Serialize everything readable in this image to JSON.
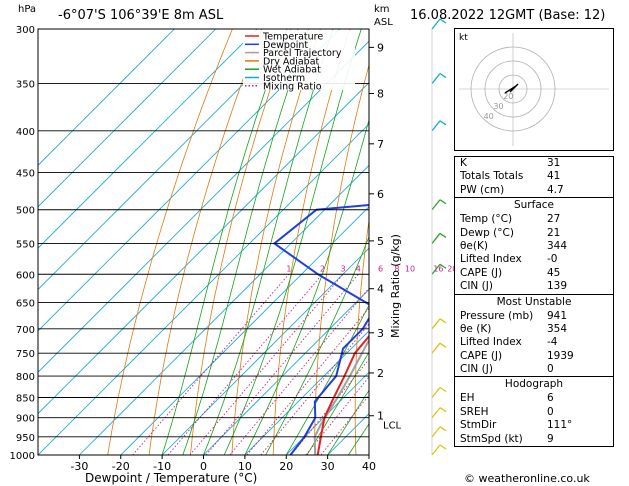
{
  "header": {
    "location": "-6°07'S  106°39'E  8m  ASL",
    "datetime": "16.08.2022  12GMT  (Base: 12)",
    "pressure_unit": "hPa",
    "height_unit": "km",
    "height_unit2": "ASL",
    "copyright": "© weatheronline.co.uk"
  },
  "chart_data": {
    "type": "skew-t",
    "xlabel": "Dewpoint / Temperature (°C)",
    "ylabel_right": "Mixing Ratio (g/kg)",
    "y_ticks_hpa": [
      300,
      350,
      400,
      450,
      500,
      550,
      600,
      650,
      700,
      750,
      800,
      850,
      900,
      950,
      1000
    ],
    "x_ticks_c": [
      -30,
      -20,
      -10,
      0,
      10,
      20,
      30,
      40
    ],
    "xlim_c": [
      -40,
      40
    ],
    "ylim_hpa": [
      1000,
      300
    ],
    "height_ticks": [
      {
        "label": "9",
        "p": 316
      },
      {
        "label": "8",
        "p": 360
      },
      {
        "label": "7",
        "p": 415
      },
      {
        "label": "6",
        "p": 478
      },
      {
        "label": "5",
        "p": 546
      },
      {
        "label": "4",
        "p": 625
      },
      {
        "label": "3",
        "p": 708
      },
      {
        "label": "2",
        "p": 793
      },
      {
        "label": "1",
        "p": 895
      }
    ],
    "lcl_label": "LCL",
    "lcl_p": 918,
    "mixing_ratio_labels": [
      "1",
      "2",
      "3",
      "4",
      "6",
      "8",
      "10",
      "16",
      "20",
      "25"
    ],
    "mixing_ratio_values": [
      1,
      2,
      3,
      4,
      6,
      8,
      10,
      16,
      20,
      25
    ],
    "legend": [
      {
        "name": "Temperature",
        "color": "#e8201e",
        "style": "solid"
      },
      {
        "name": "Dewpoint",
        "color": "#1f3fe0",
        "style": "solid"
      },
      {
        "name": "Parcel Trajectory",
        "color": "#a0a0a0",
        "style": "solid"
      },
      {
        "name": "Dry Adiabat",
        "color": "#e07a10",
        "style": "solid"
      },
      {
        "name": "Wet Adiabat",
        "color": "#16a516",
        "style": "solid"
      },
      {
        "name": "Isotherm",
        "color": "#10a8d8",
        "style": "solid"
      },
      {
        "name": "Mixing Ratio",
        "color": "#d0208c",
        "style": "dotted"
      }
    ],
    "temperature": [
      {
        "p": 1000,
        "t": 27.6
      },
      {
        "p": 950,
        "t": 24.0
      },
      {
        "p": 900,
        "t": 20.2
      },
      {
        "p": 850,
        "t": 17.6
      },
      {
        "p": 800,
        "t": 15.0
      },
      {
        "p": 750,
        "t": 12.0
      },
      {
        "p": 700,
        "t": 11.0
      },
      {
        "p": 650,
        "t": 6.0
      },
      {
        "p": 600,
        "t": 2.0
      },
      {
        "p": 550,
        "t": -2.5
      },
      {
        "p": 500,
        "t": -7.0
      },
      {
        "p": 450,
        "t": -12.0
      },
      {
        "p": 400,
        "t": -18.0
      },
      {
        "p": 350,
        "t": -25.0
      },
      {
        "p": 300,
        "t": -32.0
      }
    ],
    "dewpoint": [
      {
        "p": 1000,
        "t": 21.0
      },
      {
        "p": 950,
        "t": 20.0
      },
      {
        "p": 900,
        "t": 18.0
      },
      {
        "p": 860,
        "t": 14.0
      },
      {
        "p": 800,
        "t": 13.0
      },
      {
        "p": 740,
        "t": 8.0
      },
      {
        "p": 700,
        "t": 8.0
      },
      {
        "p": 660,
        "t": 6.0
      },
      {
        "p": 600,
        "t": -16.0
      },
      {
        "p": 550,
        "t": -34.0
      },
      {
        "p": 500,
        "t": -32.0
      },
      {
        "p": 492,
        "t": -18.0
      },
      {
        "p": 460,
        "t": -23.0
      },
      {
        "p": 400,
        "t": -28.0
      },
      {
        "p": 350,
        "t": -36.0
      },
      {
        "p": 300,
        "t": -48.0
      }
    ],
    "parcel": [
      {
        "p": 1000,
        "t": 27.0
      },
      {
        "p": 950,
        "t": 22.5
      },
      {
        "p": 918,
        "t": 21.0
      },
      {
        "p": 850,
        "t": 18.5
      },
      {
        "p": 800,
        "t": 16.3
      },
      {
        "p": 750,
        "t": 13.7
      },
      {
        "p": 700,
        "t": 11.0
      },
      {
        "p": 650,
        "t": 8.0
      },
      {
        "p": 600,
        "t": 4.3
      },
      {
        "p": 550,
        "t": 0.3
      },
      {
        "p": 500,
        "t": -4.5
      },
      {
        "p": 450,
        "t": -10.0
      },
      {
        "p": 400,
        "t": -16.5
      },
      {
        "p": 350,
        "t": -24.5
      },
      {
        "p": 300,
        "t": -33.5
      }
    ],
    "wind_barbs_p": [
      300,
      350,
      400,
      500,
      550,
      600,
      700,
      750,
      850,
      900,
      950,
      1000
    ]
  },
  "hodograph": {
    "label": "kt",
    "ring_labels": [
      "40",
      "30",
      "20"
    ]
  },
  "indices": [
    {
      "label": "K",
      "value": "31"
    },
    {
      "label": "Totals Totals",
      "value": "41"
    },
    {
      "label": "PW (cm)",
      "value": "4.7"
    }
  ],
  "surface": {
    "title": "Surface",
    "rows": [
      {
        "label": "Temp (°C)",
        "value": "27"
      },
      {
        "label": "Dewp (°C)",
        "value": "21"
      },
      {
        "label": "θe(K)",
        "value": "344"
      },
      {
        "label": "Lifted Index",
        "value": "-0"
      },
      {
        "label": "CAPE (J)",
        "value": "45"
      },
      {
        "label": "CIN (J)",
        "value": "139"
      }
    ]
  },
  "most_unstable": {
    "title": "Most Unstable",
    "rows": [
      {
        "label": "Pressure (mb)",
        "value": "941"
      },
      {
        "label": "θe (K)",
        "value": "354"
      },
      {
        "label": "Lifted Index",
        "value": "-4"
      },
      {
        "label": "CAPE (J)",
        "value": "1939"
      },
      {
        "label": "CIN (J)",
        "value": "0"
      }
    ]
  },
  "hodograph_table": {
    "title": "Hodograph",
    "rows": [
      {
        "label": "EH",
        "value": "6"
      },
      {
        "label": "SREH",
        "value": "0"
      },
      {
        "label": "StmDir",
        "value": "111°"
      },
      {
        "label": "StmSpd (kt)",
        "value": "9"
      }
    ]
  }
}
